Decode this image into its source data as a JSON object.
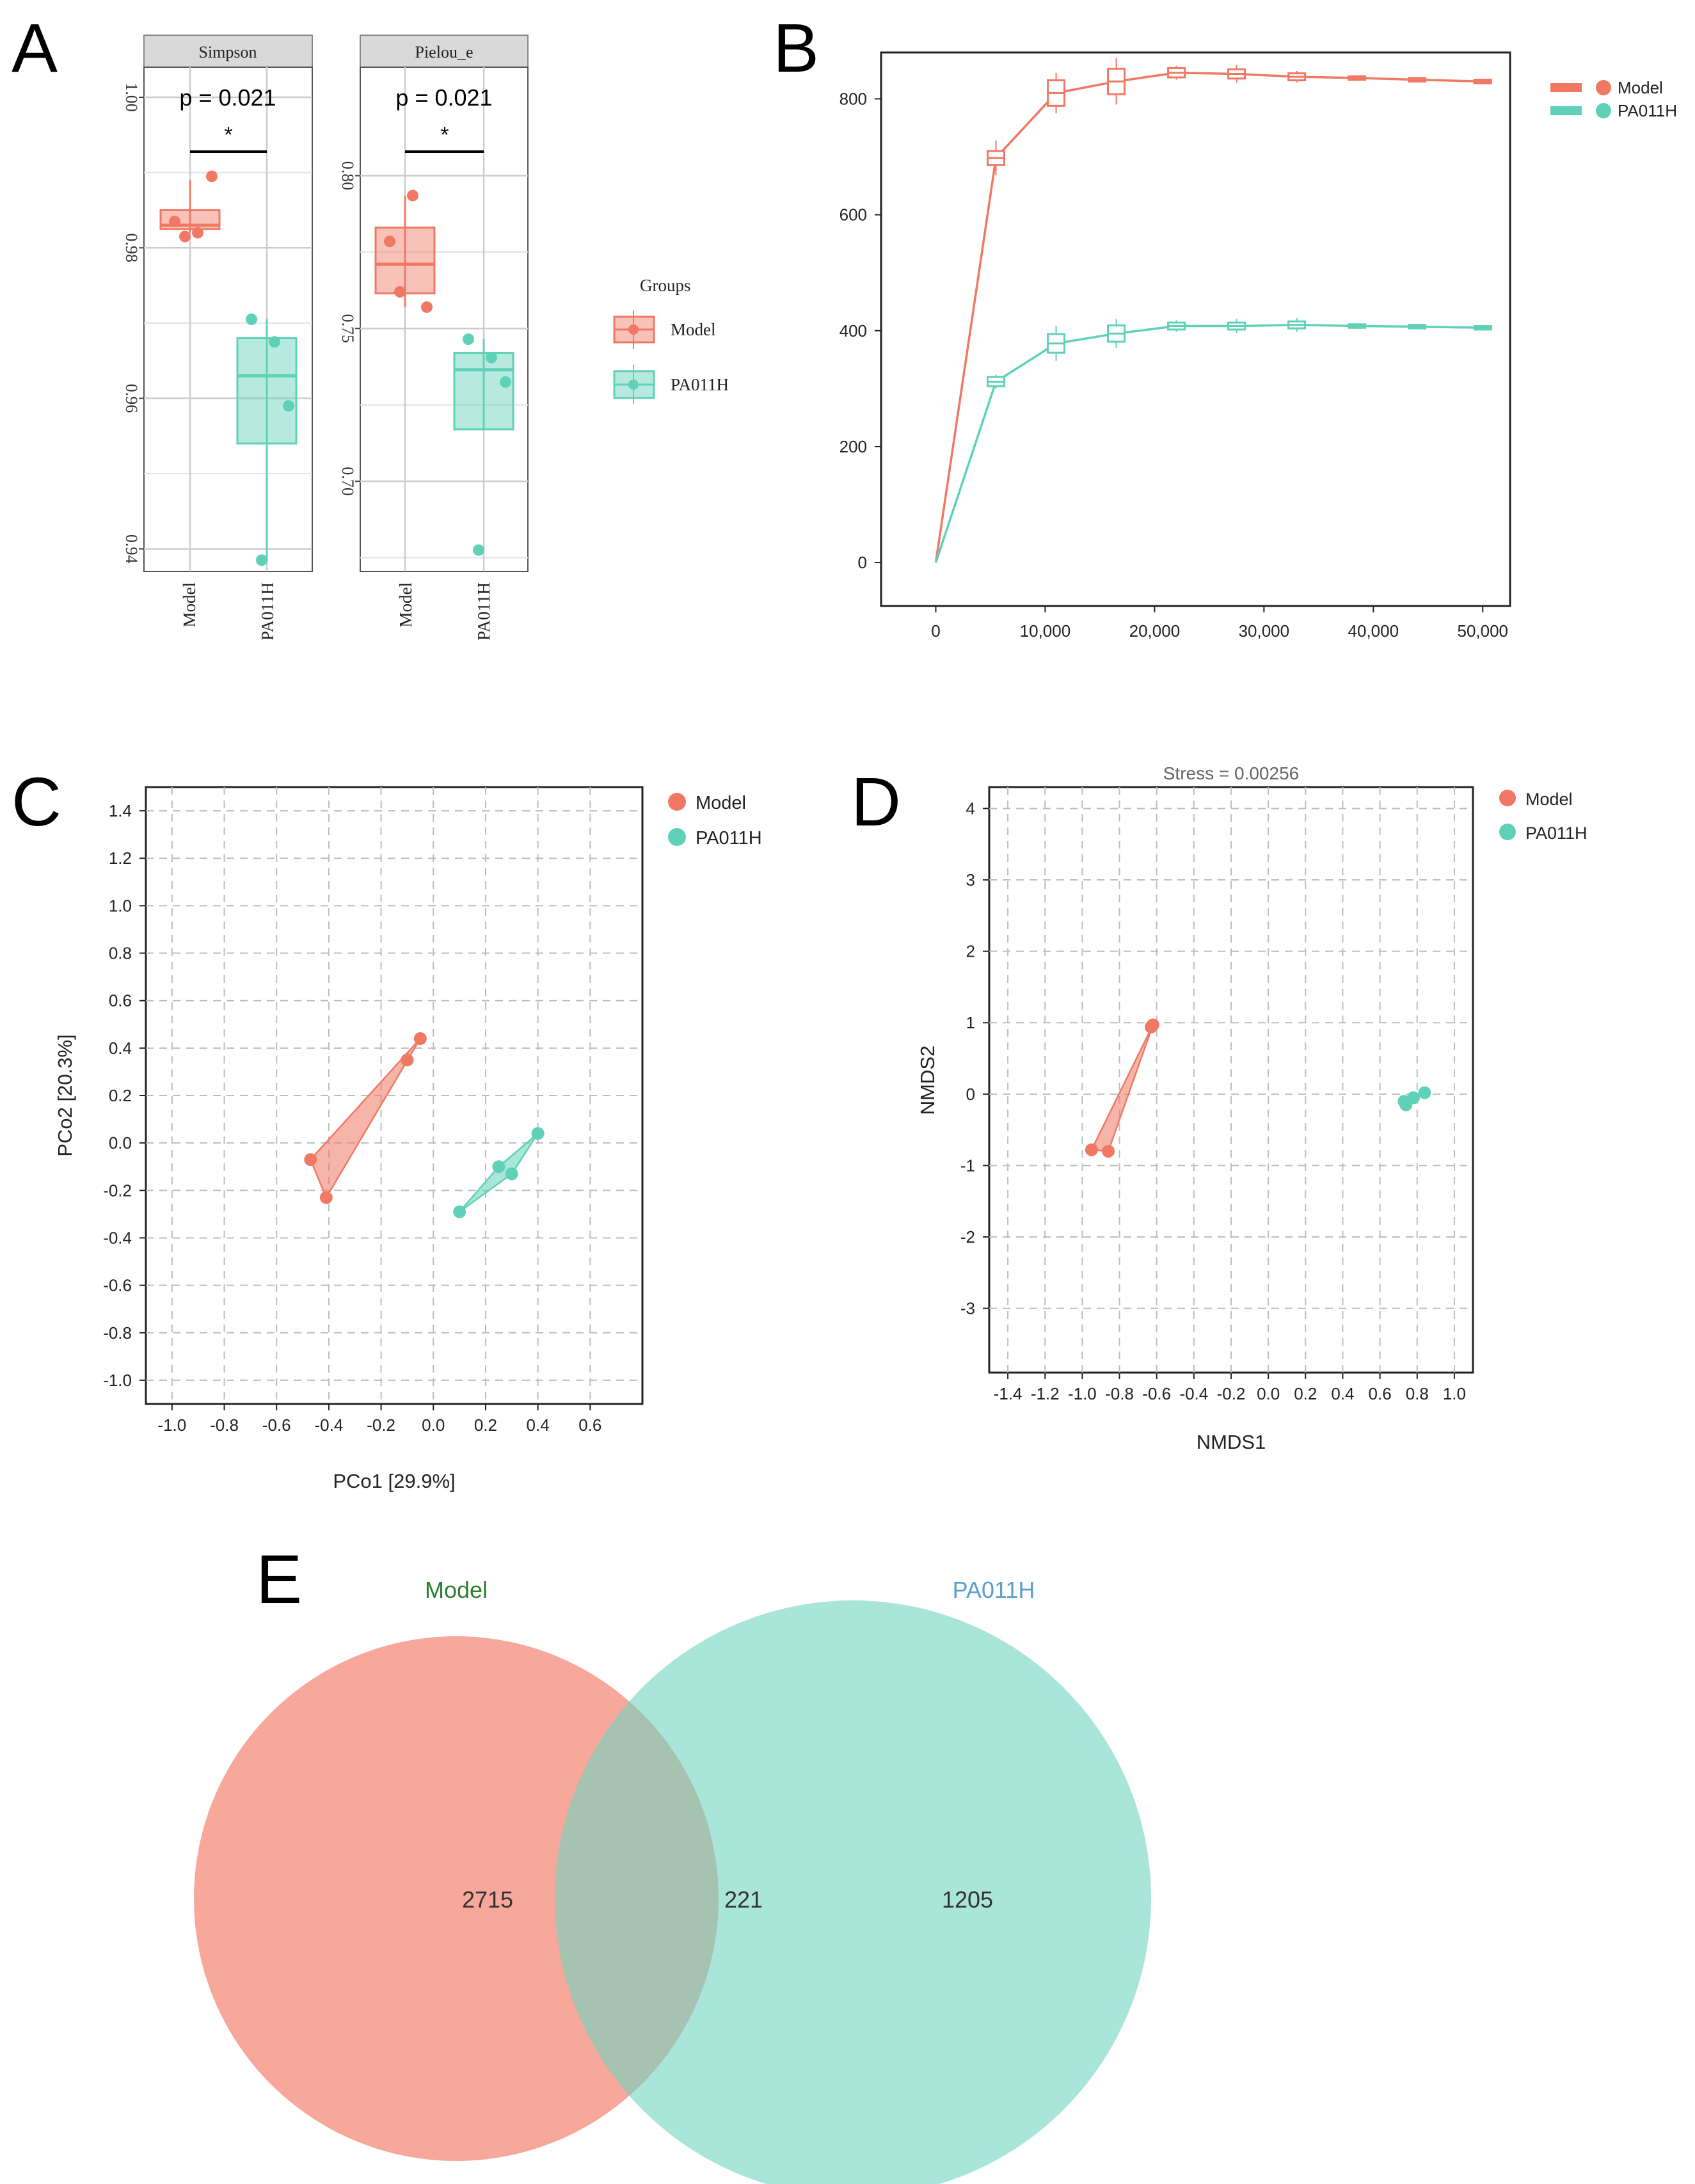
{
  "colors": {
    "model": "#f07864",
    "pa011h": "#5fd1b8",
    "grid": "#cccccc",
    "axis": "#333333",
    "venn_model": "#f5897a",
    "venn_pa": "#7ad8c5"
  },
  "panel_labels": {
    "a": "A",
    "b": "B",
    "c": "C",
    "d": "D",
    "e": "E"
  },
  "chart_data": [
    {
      "panel": "A",
      "type": "box",
      "legend": {
        "title": "Groups",
        "entries": [
          "Model",
          "PA011H"
        ],
        "placement": "right"
      },
      "facets": [
        {
          "strip": "Simpson",
          "pvalue": "p = 0.021",
          "sig": "*",
          "ylim": [
            0.937,
            1.004
          ],
          "yticks": [
            0.94,
            0.96,
            0.98,
            1.0
          ],
          "ytick_labels": [
            "0.94",
            "0.96",
            "0.98",
            "1.00"
          ],
          "categories": [
            "Model",
            "PA011H"
          ],
          "boxes": [
            {
              "group": "Model",
              "q1": 0.9825,
              "median": 0.983,
              "q3": 0.985,
              "whisker_low": 0.982,
              "whisker_high": 0.989,
              "points": [
                0.9835,
                0.982,
                0.9895,
                0.9815
              ]
            },
            {
              "group": "PA011H",
              "q1": 0.954,
              "median": 0.963,
              "q3": 0.968,
              "whisker_low": 0.9385,
              "whisker_high": 0.9705,
              "points": [
                0.9705,
                0.9675,
                0.959,
                0.9385
              ]
            }
          ]
        },
        {
          "strip": "Pielou_e",
          "pvalue": "p = 0.021",
          "sig": "*",
          "ylim": [
            0.6705,
            0.8355
          ],
          "yticks": [
            0.7,
            0.75,
            0.8
          ],
          "ytick_labels": [
            "0.70",
            "0.75",
            "0.80"
          ],
          "categories": [
            "Model",
            "PA011H"
          ],
          "boxes": [
            {
              "group": "Model",
              "q1": 0.7615,
              "median": 0.771,
              "q3": 0.783,
              "whisker_low": 0.757,
              "whisker_high": 0.7935,
              "points": [
                0.7785,
                0.7935,
                0.757,
                0.762
              ]
            },
            {
              "group": "PA011H",
              "q1": 0.717,
              "median": 0.7365,
              "q3": 0.742,
              "whisker_low": 0.717,
              "whisker_high": 0.7465,
              "points": [
                0.7465,
                0.7405,
                0.7325,
                0.6775
              ]
            }
          ]
        }
      ]
    },
    {
      "panel": "B",
      "type": "line",
      "title": "",
      "xlabel": "",
      "ylabel": "",
      "xlim": [
        -5000,
        52500
      ],
      "ylim": [
        -75,
        880
      ],
      "xticks": [
        0,
        10000,
        20000,
        30000,
        40000,
        50000
      ],
      "xtick_labels": [
        "0",
        "10,000",
        "20,000",
        "30,000",
        "40,000",
        "50,000"
      ],
      "yticks": [
        0,
        200,
        400,
        600,
        800
      ],
      "ytick_labels": [
        "0",
        "200",
        "400",
        "600",
        "800"
      ],
      "x": [
        0,
        5500,
        11000,
        16500,
        22000,
        27500,
        33000,
        38500,
        44000,
        50000
      ],
      "legend": {
        "entries": [
          "Model",
          "PA011H"
        ],
        "placement": "top-right"
      },
      "series": [
        {
          "name": "Model",
          "values": [
            0,
            698,
            810,
            830,
            845,
            843,
            838,
            836,
            833,
            830
          ],
          "box_half": [
            0,
            12,
            22,
            22,
            8,
            8,
            6,
            3,
            3,
            3
          ],
          "whisker_half": [
            0,
            30,
            35,
            40,
            12,
            15,
            10,
            5,
            4,
            4
          ]
        },
        {
          "name": "PA011H",
          "values": [
            0,
            312,
            378,
            395,
            408,
            408,
            410,
            408,
            407,
            405
          ],
          "box_half": [
            0,
            8,
            16,
            14,
            6,
            6,
            6,
            3,
            3,
            3
          ],
          "whisker_half": [
            0,
            12,
            30,
            25,
            10,
            12,
            12,
            5,
            4,
            3
          ]
        }
      ]
    },
    {
      "panel": "C",
      "type": "scatter",
      "title": "",
      "xlabel": "PCo1 [29.9%]",
      "ylabel": "PCo2 [20.3%]",
      "xlim": [
        -1.1,
        0.8
      ],
      "ylim": [
        -1.1,
        1.5
      ],
      "xticks": [
        -1.0,
        -0.8,
        -0.6,
        -0.4,
        -0.2,
        0.0,
        0.2,
        0.4,
        0.6
      ],
      "xtick_labels": [
        "-1.0",
        "-0.8",
        "-0.6",
        "-0.4",
        "-0.2",
        "0.0",
        "0.2",
        "0.4",
        "0.6"
      ],
      "yticks": [
        -1.0,
        -0.8,
        -0.6,
        -0.4,
        -0.2,
        0.0,
        0.2,
        0.4,
        0.6,
        0.8,
        1.0,
        1.2,
        1.4
      ],
      "ytick_labels": [
        "-1.0",
        "-0.8",
        "-0.6",
        "-0.4",
        "-0.2",
        "0.0",
        "0.2",
        "0.4",
        "0.6",
        "0.8",
        "1.0",
        "1.2",
        "1.4"
      ],
      "legend": {
        "entries": [
          "Model",
          "PA011H"
        ],
        "placement": "top-right"
      },
      "series": [
        {
          "name": "Model",
          "points": [
            [
              -0.05,
              0.44
            ],
            [
              -0.1,
              0.35
            ],
            [
              -0.47,
              -0.07
            ],
            [
              -0.41,
              -0.23
            ]
          ],
          "hull": [
            [
              -0.05,
              0.44
            ],
            [
              -0.47,
              -0.07
            ],
            [
              -0.41,
              -0.23
            ]
          ]
        },
        {
          "name": "PA011H",
          "points": [
            [
              0.4,
              0.04
            ],
            [
              0.25,
              -0.1
            ],
            [
              0.3,
              -0.13
            ],
            [
              0.1,
              -0.29
            ]
          ],
          "hull": [
            [
              0.4,
              0.04
            ],
            [
              0.25,
              -0.1
            ],
            [
              0.1,
              -0.29
            ],
            [
              0.3,
              -0.13
            ]
          ]
        }
      ]
    },
    {
      "panel": "D",
      "type": "scatter",
      "title": "Stress = 0.00256",
      "xlabel": "NMDS1",
      "ylabel": "NMDS2",
      "xlim": [
        -1.5,
        1.1
      ],
      "ylim": [
        -3.9,
        4.3
      ],
      "xticks": [
        -1.4,
        -1.2,
        -1.0,
        -0.8,
        -0.6,
        -0.4,
        -0.2,
        0.0,
        0.2,
        0.4,
        0.6,
        0.8,
        1.0
      ],
      "xtick_labels": [
        "-1.4",
        "-1.2",
        "-1.0",
        "-0.8",
        "-0.6",
        "-0.4",
        "-0.2",
        "0.0",
        "0.2",
        "0.4",
        "0.6",
        "0.8",
        "1.0"
      ],
      "yticks": [
        -3,
        -2,
        -1,
        0,
        1,
        2,
        3,
        4
      ],
      "ytick_labels": [
        "-3",
        "-2",
        "-1",
        "0",
        "1",
        "2",
        "3",
        "4"
      ],
      "legend": {
        "entries": [
          "Model",
          "PA011H"
        ],
        "placement": "top-right"
      },
      "series": [
        {
          "name": "Model",
          "points": [
            [
              -0.62,
              0.97
            ],
            [
              -0.63,
              0.94
            ],
            [
              -0.95,
              -0.78
            ],
            [
              -0.86,
              -0.8
            ]
          ],
          "hull": [
            [
              -0.62,
              0.97
            ],
            [
              -0.95,
              -0.78
            ],
            [
              -0.86,
              -0.8
            ]
          ]
        },
        {
          "name": "PA011H",
          "points": [
            [
              0.84,
              0.02
            ],
            [
              0.78,
              -0.05
            ],
            [
              0.73,
              -0.1
            ],
            [
              0.74,
              -0.15
            ]
          ],
          "hull": []
        }
      ]
    },
    {
      "panel": "E",
      "type": "venn",
      "sets": [
        "Model",
        "PA011H"
      ],
      "values": {
        "model_only": 2715,
        "shared": 221,
        "pa011h_only": 1205
      }
    }
  ]
}
